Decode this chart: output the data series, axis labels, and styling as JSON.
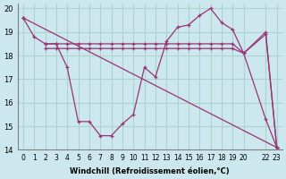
{
  "xlabel": "Windchill (Refroidissement éolien,°C)",
  "bg_color": "#cce8ee",
  "grid_color": "#aad4cc",
  "line_color": "#993377",
  "xlim": [
    -0.5,
    23.5
  ],
  "ylim": [
    14,
    20.2
  ],
  "yticks": [
    14,
    15,
    16,
    17,
    18,
    19,
    20
  ],
  "xticks": [
    0,
    1,
    2,
    3,
    4,
    5,
    6,
    7,
    8,
    9,
    10,
    11,
    12,
    13,
    14,
    15,
    16,
    17,
    18,
    19,
    20,
    22,
    23
  ],
  "xtick_labels": [
    "0",
    "1",
    "2",
    "3",
    "4",
    "5",
    "6",
    "7",
    "8",
    "9",
    "10",
    "11",
    "12",
    "13",
    "14",
    "15",
    "16",
    "17",
    "18",
    "19",
    "20",
    "22",
    "23"
  ],
  "series": [
    {
      "x": [
        0,
        1,
        2,
        3,
        4,
        5,
        6,
        7,
        8,
        9,
        10,
        11,
        12,
        13,
        14,
        15,
        16,
        17,
        18,
        19,
        20,
        22,
        23
      ],
      "y": [
        19.6,
        18.8,
        18.5,
        18.5,
        17.5,
        15.2,
        15.2,
        14.6,
        14.6,
        15.1,
        15.5,
        17.5,
        17.1,
        18.6,
        19.2,
        19.3,
        19.7,
        20.0,
        19.4,
        19.1,
        18.1,
        15.3,
        14.1
      ]
    },
    {
      "x": [
        2,
        3,
        4,
        5,
        6,
        7,
        8,
        9,
        10,
        11,
        12,
        13,
        14,
        15,
        16,
        17,
        18,
        19,
        20,
        22,
        23
      ],
      "y": [
        18.5,
        18.5,
        18.5,
        18.5,
        18.5,
        18.5,
        18.5,
        18.5,
        18.5,
        18.5,
        18.5,
        18.5,
        18.5,
        18.5,
        18.5,
        18.5,
        18.5,
        18.5,
        18.1,
        18.9,
        14.1
      ]
    },
    {
      "x": [
        2,
        3,
        4,
        5,
        6,
        7,
        8,
        9,
        10,
        11,
        12,
        13,
        14,
        15,
        16,
        17,
        18,
        19,
        20,
        22,
        23
      ],
      "y": [
        18.3,
        18.3,
        18.3,
        18.3,
        18.3,
        18.3,
        18.3,
        18.3,
        18.3,
        18.3,
        18.3,
        18.3,
        18.3,
        18.3,
        18.3,
        18.3,
        18.3,
        18.3,
        18.1,
        19.0,
        14.1
      ]
    },
    {
      "x": [
        0,
        23
      ],
      "y": [
        19.6,
        14.1
      ]
    }
  ]
}
